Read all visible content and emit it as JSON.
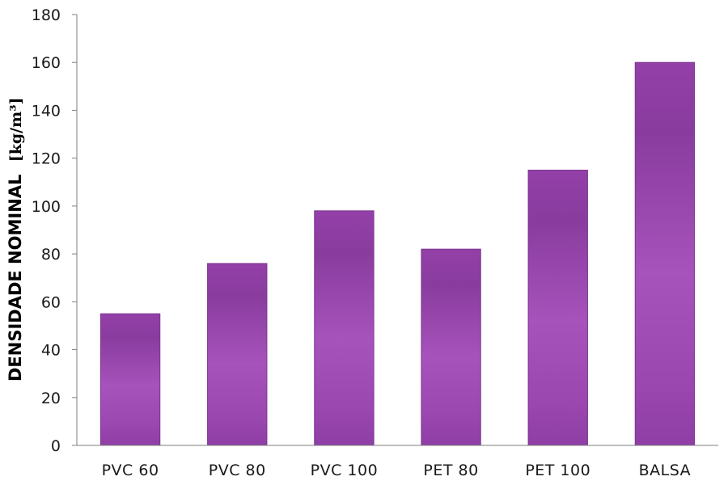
{
  "chart_data": {
    "type": "bar",
    "categories": [
      "PVC  60",
      "PVC  80",
      "PVC  100",
      "PET  80",
      "PET  100",
      "BALSA"
    ],
    "values": [
      55,
      76,
      98,
      82,
      115,
      160
    ],
    "title": "",
    "xlabel": "",
    "ylabel": "DENSIDADE NOMINAL",
    "ylabel_unit": "[kg/m³]",
    "ylim": [
      0,
      180
    ],
    "yticks": [
      0,
      20,
      40,
      60,
      80,
      100,
      120,
      140,
      160,
      180
    ],
    "grid": false,
    "legend": "none",
    "bar_color": "#9b47b0",
    "bar_color_dark": "#8a3c9e",
    "bar_color_light": "#a653bb"
  }
}
